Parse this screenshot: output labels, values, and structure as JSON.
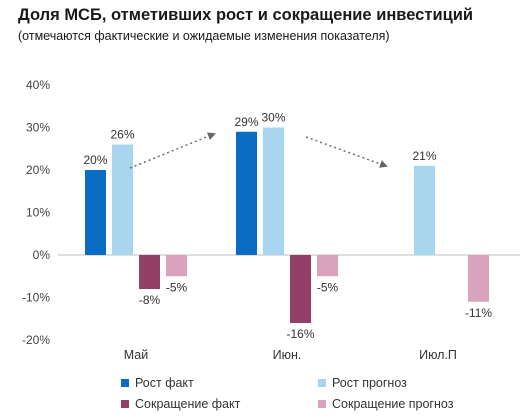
{
  "chart_data": {
    "type": "bar",
    "title": "Доля МСБ, отметивших рост и сокращение инвестиций",
    "subtitle": "(отмечаются фактические и ожидаемые изменения показателя)",
    "categories": [
      "Май",
      "Июн.",
      "Июл.П"
    ],
    "ylim": [
      -20,
      40
    ],
    "yticks": [
      -20,
      -10,
      0,
      10,
      20,
      30,
      40
    ],
    "ytick_labels": [
      "-20%",
      "-10%",
      "0%",
      "10%",
      "20%",
      "30%",
      "40%"
    ],
    "series": [
      {
        "name": "Рост факт",
        "color": "#0b6cc4",
        "values": [
          20,
          29,
          null
        ],
        "labels": [
          "20%",
          "29%",
          ""
        ]
      },
      {
        "name": "Рост прогноз",
        "color": "#a9d6ef",
        "values": [
          26,
          30,
          21
        ],
        "labels": [
          "26%",
          "30%",
          "21%"
        ]
      },
      {
        "name": "Сокращение факт",
        "color": "#934068",
        "values": [
          -8,
          -16,
          null
        ],
        "labels": [
          "-8%",
          "-16%",
          ""
        ]
      },
      {
        "name": "Сокращение прогноз",
        "color": "#d9a3be",
        "values": [
          -5,
          -5,
          -11
        ],
        "labels": [
          "-5%",
          "-5%",
          "-11%"
        ]
      }
    ],
    "legend_position": "bottom",
    "grid": false
  }
}
